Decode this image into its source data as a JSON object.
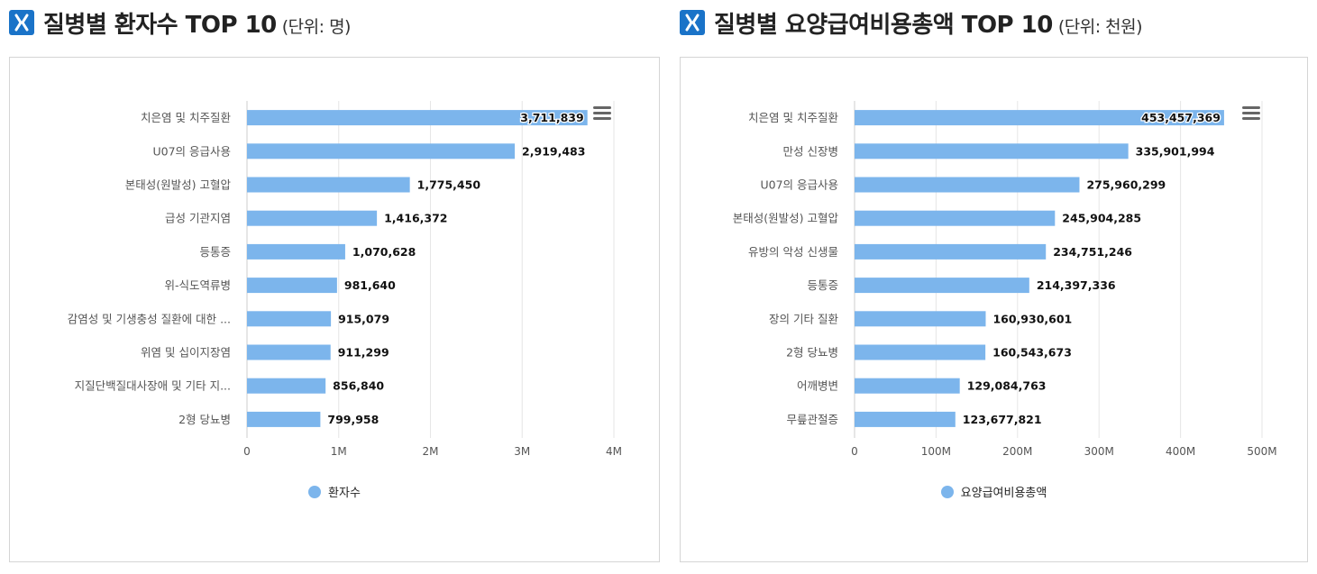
{
  "left": {
    "title": "질병별 환자수 TOP 10",
    "unit": "(단위: 명)",
    "legend": "환자수",
    "menu_icon": "hamburger-menu-icon",
    "chart_data": {
      "type": "bar",
      "orientation": "horizontal",
      "categories": [
        "치은염 및 치주질환",
        "U07의 응급사용",
        "본태성(원발성) 고혈압",
        "급성 기관지염",
        "등통증",
        "위-식도역류병",
        "감염성 및 기생충성 질환에 대한 ...",
        "위염 및 십이지장염",
        "지질단백질대사장애 및 기타 지...",
        "2형 당뇨병"
      ],
      "values": [
        3711839,
        2919483,
        1775450,
        1416372,
        1070628,
        981640,
        915079,
        911299,
        856840,
        799958
      ],
      "labels": [
        "3,711,839",
        "2,919,483",
        "1,775,450",
        "1,416,372",
        "1,070,628",
        "981,640",
        "915,079",
        "911,299",
        "856,840",
        "799,958"
      ],
      "series": [
        {
          "name": "환자수",
          "color": "#7cb5ec"
        }
      ],
      "xlim": [
        0,
        4000000
      ],
      "ticks": [
        0,
        1000000,
        2000000,
        3000000,
        4000000
      ],
      "tick_labels": [
        "0",
        "1M",
        "2M",
        "3M",
        "4M"
      ],
      "grid": true,
      "legend_position": "bottom"
    }
  },
  "right": {
    "title": "질병별 요양급여비용총액 TOP 10",
    "unit": "(단위: 천원)",
    "legend": "요양급여비용총액",
    "menu_icon": "hamburger-menu-icon",
    "chart_data": {
      "type": "bar",
      "orientation": "horizontal",
      "categories": [
        "치은염 및 치주질환",
        "만성 신장병",
        "U07의 응급사용",
        "본태성(원발성) 고혈압",
        "유방의 악성 신생물",
        "등통증",
        "장의 기타 질환",
        "2형 당뇨병",
        "어깨병변",
        "무릎관절증"
      ],
      "values": [
        453457369,
        335901994,
        275960299,
        245904285,
        234751246,
        214397336,
        160930601,
        160543673,
        129084763,
        123677821
      ],
      "labels": [
        "453,457,369",
        "335,901,994",
        "275,960,299",
        "245,904,285",
        "234,751,246",
        "214,397,336",
        "160,930,601",
        "160,543,673",
        "129,084,763",
        "123,677,821"
      ],
      "series": [
        {
          "name": "요양급여비용총액",
          "color": "#7cb5ec"
        }
      ],
      "xlim": [
        0,
        500000000
      ],
      "ticks": [
        0,
        100000000,
        200000000,
        300000000,
        400000000,
        500000000
      ],
      "tick_labels": [
        "0",
        "100M",
        "200M",
        "300M",
        "400M",
        "500M"
      ],
      "grid": true,
      "legend_position": "bottom"
    }
  }
}
